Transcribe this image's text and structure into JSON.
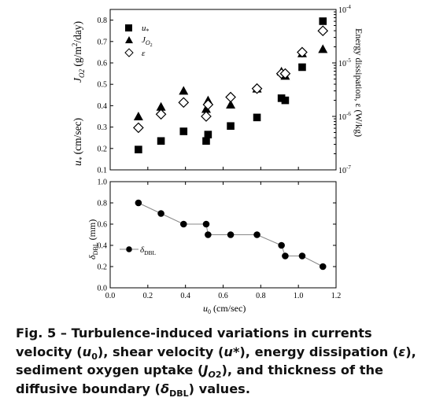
{
  "chart_data": [
    {
      "type": "scatter",
      "panel": "top",
      "x_range": [
        0,
        1.2
      ],
      "grid": false,
      "left_axis": {
        "ticks": [
          0.1,
          0.2,
          0.3,
          0.4,
          0.5,
          0.6,
          0.7,
          0.8
        ],
        "ylim": [
          0.1,
          0.85
        ]
      },
      "right_axis": {
        "label": "Energy dissipation, ε (W/kg)",
        "scale": "log",
        "ticks": [
          "10⁻⁷",
          "10⁻⁶",
          "10⁻⁵",
          "10⁻⁴"
        ],
        "ylim_exponent": [
          -7,
          -4
        ]
      },
      "legend_position": "top-left",
      "series": [
        {
          "name": "u*",
          "marker": "filled-square",
          "points": [
            [
              0.15,
              0.195
            ],
            [
              0.27,
              0.235
            ],
            [
              0.39,
              0.28
            ],
            [
              0.51,
              0.235
            ],
            [
              0.52,
              0.265
            ],
            [
              0.64,
              0.305
            ],
            [
              0.78,
              0.345
            ],
            [
              0.91,
              0.435
            ],
            [
              0.93,
              0.425
            ],
            [
              1.02,
              0.58
            ],
            [
              1.13,
              0.795
            ]
          ]
        },
        {
          "name": "JO2",
          "marker": "filled-triangle",
          "points": [
            [
              0.15,
              0.35
            ],
            [
              0.27,
              0.395
            ],
            [
              0.39,
              0.47
            ],
            [
              0.51,
              0.385
            ],
            [
              0.52,
              0.425
            ],
            [
              0.64,
              0.405
            ],
            [
              0.78,
              0.48
            ],
            [
              0.91,
              0.56
            ],
            [
              0.93,
              0.54
            ],
            [
              1.02,
              0.645
            ],
            [
              1.13,
              0.665
            ]
          ]
        },
        {
          "name": "ε",
          "marker": "open-diamond",
          "points": [
            [
              0.15,
              0.297
            ],
            [
              0.27,
              0.36
            ],
            [
              0.39,
              0.415
            ],
            [
              0.51,
              0.35
            ],
            [
              0.52,
              0.405
            ],
            [
              0.64,
              0.44
            ],
            [
              0.78,
              0.48
            ],
            [
              0.91,
              0.55
            ],
            [
              0.93,
              0.55
            ],
            [
              1.02,
              0.65
            ],
            [
              1.13,
              0.75
            ]
          ]
        }
      ]
    },
    {
      "type": "line",
      "panel": "bottom",
      "xlabel": "u0 (cm/sec)",
      "ylabel": "δDBL (mm)",
      "xlim": [
        0,
        1.2
      ],
      "ylim": [
        0,
        1.0
      ],
      "grid": false,
      "legend_position": "middle-left",
      "x_ticks": [
        "0.0",
        "0.2",
        "0.4",
        "0.6",
        "0.8",
        "1.0",
        "1.2"
      ],
      "y_ticks": [
        "0.0",
        "0.2",
        "0.4",
        "0.6",
        "0.8",
        "1.0"
      ],
      "series": [
        {
          "name": "δDBL",
          "marker": "filled-circle",
          "x": [
            0.15,
            0.27,
            0.39,
            0.51,
            0.52,
            0.64,
            0.78,
            0.91,
            0.93,
            1.02,
            1.13
          ],
          "y": [
            0.8,
            0.7,
            0.6,
            0.6,
            0.5,
            0.5,
            0.5,
            0.4,
            0.3,
            0.3,
            0.2
          ]
        }
      ]
    }
  ],
  "top_labels": {
    "ylabel_j": "J",
    "ylabel_j_sub": "O2",
    "ylabel_j_units": " (g/m",
    "ylabel_j_sup": "2",
    "ylabel_j_end": "/day)",
    "ylabel_u": "u",
    "ylabel_u_sub": "*",
    "ylabel_u_units": " (cm/sec)",
    "right_label_base": "Energy dissipation, ε (W/kg)",
    "right_ticks_base": "10",
    "right_ticks_exp": [
      "-7",
      "-6",
      "-5",
      "-4"
    ],
    "legend_u": "u",
    "legend_u_sub": "*",
    "legend_j": "J",
    "legend_j_sub": "O",
    "legend_j_subsub": "2",
    "legend_e": "ε"
  },
  "bottom_labels": {
    "ylabel_delta": "δ",
    "ylabel_delta_sub": "DBL",
    "ylabel_units": " (mm)",
    "xlabel_u": "u",
    "xlabel_u_sub": "0",
    "xlabel_units": " (cm/sec)",
    "legend_delta": "δ",
    "legend_delta_sub": "DBL"
  },
  "caption": {
    "lead": "Fig. 5 – Turbulence-induced variations in currents velocity (",
    "u0": "u",
    "u0_sub": "0",
    "part2": "), shear velocity (",
    "ustar": "u",
    "ustar_sub": "*",
    "part3": "), energy dissipation (",
    "eps": "ε",
    "part4": "), sediment oxygen uptake (",
    "j": "J",
    "j_sub": "O",
    "j_subsub": "2",
    "part5": "), and thickness of the diffusive boundary (",
    "delta": "δ",
    "delta_sub": "DBL",
    "part6": ") values."
  }
}
